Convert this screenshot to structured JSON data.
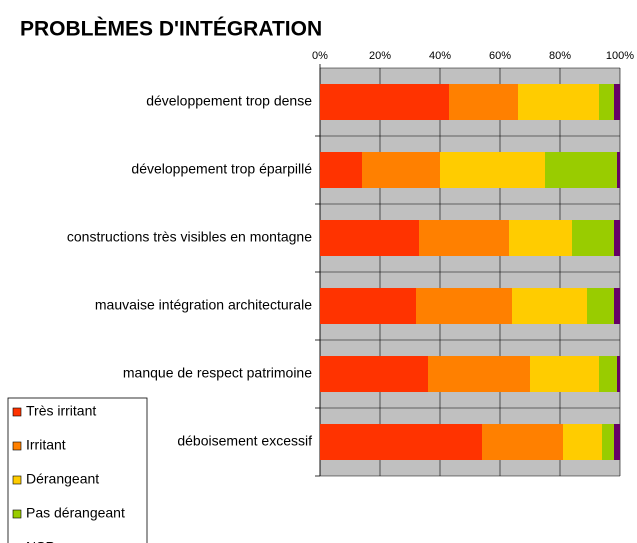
{
  "chart_data": {
    "type": "stacked_bar_horizontal",
    "title": "PROBLÈMES D'INTÉGRATION",
    "categories": [
      "développement trop dense",
      "développement trop éparpillé",
      "constructions très visibles en montagne",
      "mauvaise intégration architecturale",
      "manque de respect patrimoine",
      "déboisement excessif"
    ],
    "series": [
      {
        "name": "Très irritant",
        "color": "#ff3300",
        "values": [
          43,
          14,
          33,
          32,
          36,
          54
        ]
      },
      {
        "name": "Irritant",
        "color": "#ff8000",
        "values": [
          23,
          26,
          30,
          32,
          34,
          27
        ]
      },
      {
        "name": "Dérangeant",
        "color": "#ffcc00",
        "values": [
          27,
          35,
          21,
          25,
          23,
          13
        ]
      },
      {
        "name": "Pas dérangeant",
        "color": "#99cc00",
        "values": [
          5,
          24,
          14,
          9,
          6,
          4
        ]
      },
      {
        "name": "NSP",
        "color": "#660066",
        "values": [
          2,
          1,
          2,
          2,
          1,
          2
        ]
      }
    ],
    "xlim": [
      0,
      100
    ],
    "xticks": [
      {
        "value": 0,
        "label": "0%"
      },
      {
        "value": 20,
        "label": "20%"
      },
      {
        "value": 40,
        "label": "40%"
      },
      {
        "value": 60,
        "label": "60%"
      },
      {
        "value": 80,
        "label": "80%"
      },
      {
        "value": 100,
        "label": "100%"
      }
    ],
    "grid": true,
    "legend": "bottom-left"
  }
}
